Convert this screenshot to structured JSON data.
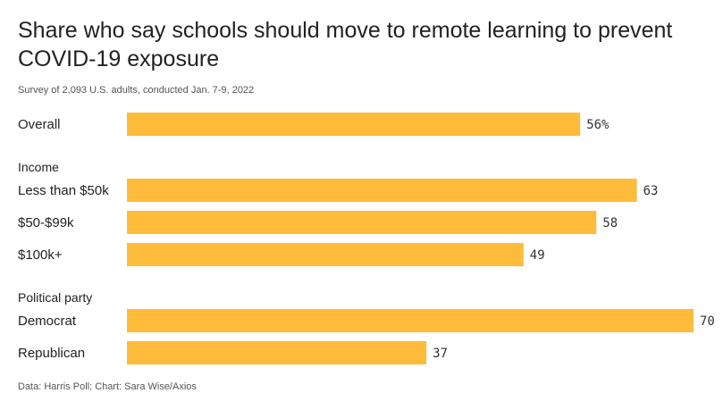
{
  "title": "Share who say schools should move to remote learning to prevent COVID-19 exposure",
  "subtitle": "Survey of 2,093 U.S. adults, conducted Jan. 7-9, 2022",
  "source": "Data: Harris Poll; Chart: Sara Wise/Axios",
  "colors": {
    "bar": "#ffbb3a"
  },
  "chart_data": {
    "type": "bar",
    "orientation": "horizontal",
    "xlim": [
      0,
      70
    ],
    "groups": [
      {
        "label": "",
        "items": [
          {
            "category": "Overall",
            "value": 56,
            "label": "56%"
          }
        ]
      },
      {
        "label": "Income",
        "items": [
          {
            "category": "Less than $50k",
            "value": 63,
            "label": "63"
          },
          {
            "category": "$50-$99k",
            "value": 58,
            "label": "58"
          },
          {
            "category": "$100k+",
            "value": 49,
            "label": "49"
          }
        ]
      },
      {
        "label": "Political party",
        "items": [
          {
            "category": "Democrat",
            "value": 70,
            "label": "70"
          },
          {
            "category": "Republican",
            "value": 37,
            "label": "37"
          }
        ]
      }
    ]
  }
}
